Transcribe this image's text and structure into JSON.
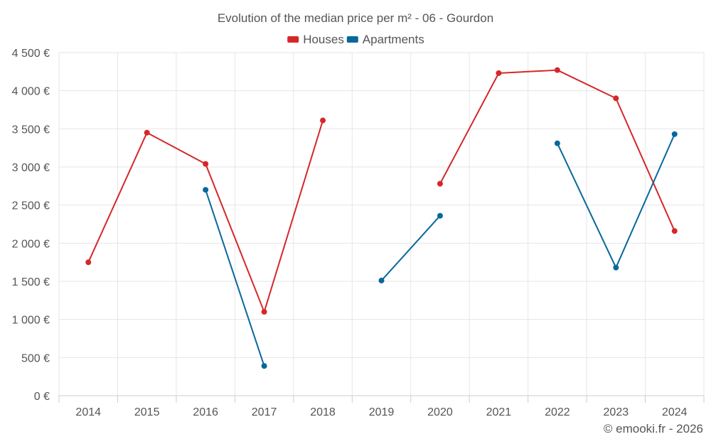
{
  "chart_data": {
    "type": "line",
    "title": "Evolution of the median price per m² - 06 - Gourdon",
    "categories": [
      "2014",
      "2015",
      "2016",
      "2017",
      "2018",
      "2019",
      "2020",
      "2021",
      "2022",
      "2023",
      "2024"
    ],
    "series": [
      {
        "name": "Houses",
        "color": "#d62728",
        "values": [
          1750,
          3450,
          3040,
          1100,
          3610,
          null,
          2780,
          4230,
          4270,
          3900,
          2160
        ]
      },
      {
        "name": "Apartments",
        "color": "#08679c",
        "values": [
          null,
          null,
          2700,
          390,
          null,
          1510,
          2360,
          null,
          3310,
          1680,
          3430
        ]
      }
    ],
    "ylim": [
      0,
      4500
    ],
    "ytick_step": 500,
    "ytick_labels": [
      "0 €",
      "500 €",
      "1 000 €",
      "1 500 €",
      "2 000 €",
      "2 500 €",
      "3 000 €",
      "3 500 €",
      "4 000 €",
      "4 500 €"
    ],
    "legend_position": "top-center",
    "grid": true
  },
  "credit": "© emooki.fr - 2026"
}
